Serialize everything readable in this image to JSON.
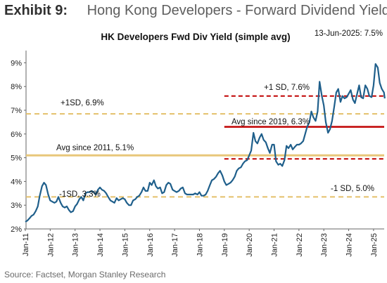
{
  "header": {
    "exhibit": "Exhibit 9:",
    "title": "Hong Kong Developers - Forward Dividend Yield"
  },
  "source": "Source: Factset, Morgan Stanley Research",
  "colors": {
    "line": "#1f5f8b",
    "sd_band": "#c00000",
    "avg_recent": "#c00000",
    "avg_2011": "#e8c77a",
    "sd_2011": "#e4c06a"
  },
  "chart_data": {
    "type": "line",
    "title": "HK Developers Fwd Div Yield (simple avg)",
    "latest_label": "13-Jun-2025: 7.5%",
    "yticks": [
      "2%",
      "3%",
      "4%",
      "5%",
      "6%",
      "7%",
      "8%",
      "9%"
    ],
    "ylim": [
      2,
      9.5
    ],
    "xlim": [
      2011.0,
      2025.6
    ],
    "xticks": [
      "Jan-11",
      "Jan-12",
      "Jan-13",
      "Jan-14",
      "Jan-15",
      "Jan-16",
      "Jan-17",
      "Jan-18",
      "Jan-19",
      "Jan-20",
      "Jan-21",
      "Jan-22",
      "Jan-23",
      "Jan-24",
      "Jan-25"
    ],
    "reference_lines": [
      {
        "label": "+1SD, 6.9%",
        "value": 6.85,
        "from": 2011.0,
        "to": 2025.6,
        "style": "dashed-gold"
      },
      {
        "label": "Avg since 2011, 5.1%",
        "value": 5.1,
        "from": 2011.0,
        "to": 2025.6,
        "style": "solid-gold"
      },
      {
        "label": "-1SD, 3.3%",
        "value": 3.35,
        "from": 2011.0,
        "to": 2025.6,
        "style": "dashed-gold"
      },
      {
        "label": "+1 SD, 7.6%",
        "value": 7.6,
        "from": 2019.0,
        "to": 2025.6,
        "style": "dashed-red"
      },
      {
        "label": "Avg since 2019, 6.3%",
        "value": 6.3,
        "from": 2019.0,
        "to": 2025.6,
        "style": "solid-red"
      },
      {
        "label": "-1 SD, 5.0%",
        "value": 4.95,
        "from": 2019.0,
        "to": 2025.6,
        "style": "dashed-red"
      }
    ],
    "series": [
      {
        "x": [
          2011.0,
          2011.08,
          2011.17,
          2011.25,
          2011.33,
          2011.42,
          2011.5,
          2011.58,
          2011.67,
          2011.75,
          2011.83,
          2011.92,
          2012.0,
          2012.08,
          2012.17,
          2012.25,
          2012.33,
          2012.42,
          2012.5,
          2012.58,
          2012.67,
          2012.75,
          2012.83,
          2012.92,
          2013.0,
          2013.08,
          2013.17,
          2013.25,
          2013.33,
          2013.42,
          2013.5,
          2013.58,
          2013.67,
          2013.75,
          2013.83,
          2013.92,
          2014.0,
          2014.08,
          2014.17,
          2014.25,
          2014.33,
          2014.42,
          2014.5,
          2014.58,
          2014.67,
          2014.75,
          2014.83,
          2014.92,
          2015.0,
          2015.08,
          2015.17,
          2015.25,
          2015.33,
          2015.42,
          2015.5,
          2015.58,
          2015.67,
          2015.75,
          2015.83,
          2015.92,
          2016.0,
          2016.08,
          2016.17,
          2016.25,
          2016.33,
          2016.42,
          2016.5,
          2016.58,
          2016.67,
          2016.75,
          2016.83,
          2016.92,
          2017.0,
          2017.08,
          2017.17,
          2017.25,
          2017.33,
          2017.42,
          2017.5,
          2017.58,
          2017.67,
          2017.75,
          2017.83,
          2017.92,
          2018.0,
          2018.08,
          2018.17,
          2018.25,
          2018.33,
          2018.42,
          2018.5,
          2018.58,
          2018.67,
          2018.75,
          2018.83,
          2018.92,
          2019.0,
          2019.08,
          2019.17,
          2019.25,
          2019.33,
          2019.42,
          2019.5,
          2019.58,
          2019.67,
          2019.75,
          2019.83,
          2019.92,
          2020.0,
          2020.08,
          2020.17,
          2020.25,
          2020.33,
          2020.42,
          2020.5,
          2020.58,
          2020.67,
          2020.75,
          2020.83,
          2020.92,
          2021.0,
          2021.08,
          2021.17,
          2021.25,
          2021.33,
          2021.42,
          2021.5,
          2021.58,
          2021.67,
          2021.75,
          2021.83,
          2021.92,
          2022.0,
          2022.08,
          2022.17,
          2022.25,
          2022.33,
          2022.42,
          2022.5,
          2022.58,
          2022.67,
          2022.75,
          2022.83,
          2022.92,
          2023.0,
          2023.08,
          2023.17,
          2023.25,
          2023.33,
          2023.42,
          2023.5,
          2023.58,
          2023.67,
          2023.75,
          2023.83,
          2023.92,
          2024.0,
          2024.08,
          2024.17,
          2024.25,
          2024.33,
          2024.42,
          2024.5,
          2024.58,
          2024.67,
          2024.75,
          2024.83,
          2024.92,
          2025.0,
          2025.08,
          2025.17,
          2025.25,
          2025.33,
          2025.42,
          2025.45
        ],
        "y": [
          2.3,
          2.35,
          2.45,
          2.55,
          2.6,
          2.75,
          2.95,
          3.4,
          3.8,
          3.95,
          3.85,
          3.45,
          3.2,
          3.15,
          3.1,
          3.15,
          3.35,
          3.1,
          2.95,
          2.9,
          2.95,
          2.8,
          2.7,
          2.75,
          2.95,
          3.05,
          3.25,
          3.35,
          3.2,
          3.5,
          3.55,
          3.55,
          3.6,
          3.55,
          3.45,
          3.65,
          3.75,
          3.65,
          3.6,
          3.5,
          3.35,
          3.2,
          3.15,
          3.1,
          3.3,
          3.2,
          3.25,
          3.3,
          3.25,
          3.1,
          3.0,
          3.0,
          3.2,
          3.25,
          3.35,
          3.4,
          3.55,
          3.75,
          3.6,
          3.6,
          3.95,
          3.85,
          4.05,
          3.8,
          3.7,
          3.75,
          3.5,
          3.55,
          3.85,
          3.95,
          3.9,
          3.65,
          3.6,
          3.55,
          3.6,
          3.7,
          3.75,
          3.5,
          3.45,
          3.45,
          3.45,
          3.45,
          3.5,
          3.45,
          3.55,
          3.4,
          3.4,
          3.45,
          3.6,
          3.85,
          4.05,
          4.1,
          4.2,
          4.35,
          4.45,
          4.25,
          4.0,
          3.85,
          3.9,
          3.95,
          4.05,
          4.2,
          4.45,
          4.55,
          4.6,
          4.75,
          4.85,
          4.9,
          5.1,
          5.3,
          6.05,
          5.7,
          5.6,
          5.85,
          6.0,
          5.75,
          5.65,
          5.4,
          5.2,
          5.55,
          5.55,
          4.85,
          4.7,
          4.75,
          4.65,
          4.9,
          5.5,
          5.4,
          5.55,
          5.35,
          5.45,
          5.55,
          5.55,
          5.6,
          5.7,
          6.0,
          6.3,
          6.5,
          6.95,
          6.7,
          6.55,
          6.95,
          8.2,
          7.6,
          7.2,
          6.5,
          6.05,
          6.2,
          6.55,
          7.15,
          7.75,
          7.9,
          7.35,
          7.6,
          7.5,
          7.55,
          7.7,
          7.85,
          7.45,
          7.3,
          7.65,
          8.05,
          7.55,
          7.5,
          8.05,
          7.9,
          7.6,
          7.55,
          8.05,
          8.95,
          8.8,
          8.15,
          7.9,
          7.75,
          7.5
        ]
      }
    ]
  }
}
